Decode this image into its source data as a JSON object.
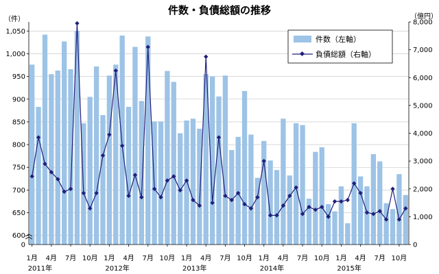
{
  "chart_data": {
    "type": "bar+line",
    "title": "件数・負債総額の推移",
    "left_axis": {
      "unit": "（件）",
      "ylim": [
        580,
        1070
      ],
      "ticks": [
        600,
        650,
        700,
        750,
        800,
        850,
        900,
        950,
        1000,
        1050
      ],
      "tick_labels": [
        "600",
        "650",
        "700",
        "750",
        "800",
        "850",
        "900",
        "950",
        "1,000",
        "1,050"
      ],
      "zero_label": "0"
    },
    "right_axis": {
      "unit": "（億円）",
      "ylim": [
        0,
        8000
      ],
      "ticks": [
        0,
        1000,
        2000,
        3000,
        4000,
        5000,
        6000,
        7000,
        8000
      ],
      "tick_labels": [
        "0",
        "1,000",
        "2,000",
        "3,000",
        "4,000",
        "5,000",
        "6,000",
        "7,000",
        "8,000"
      ]
    },
    "x_tick_labels": [
      {
        "index": 0,
        "label": "1月"
      },
      {
        "index": 3,
        "label": "4月"
      },
      {
        "index": 6,
        "label": "7月"
      },
      {
        "index": 9,
        "label": "10月"
      },
      {
        "index": 12,
        "label": "1月"
      },
      {
        "index": 15,
        "label": "4月"
      },
      {
        "index": 18,
        "label": "7月"
      },
      {
        "index": 21,
        "label": "10月"
      },
      {
        "index": 24,
        "label": "1月"
      },
      {
        "index": 27,
        "label": "4月"
      },
      {
        "index": 30,
        "label": "7月"
      },
      {
        "index": 33,
        "label": "10月"
      },
      {
        "index": 36,
        "label": "1月"
      },
      {
        "index": 39,
        "label": "4月"
      },
      {
        "index": 42,
        "label": "7月"
      },
      {
        "index": 45,
        "label": "10月"
      },
      {
        "index": 48,
        "label": "1月"
      },
      {
        "index": 51,
        "label": "4月"
      },
      {
        "index": 54,
        "label": "7月"
      },
      {
        "index": 57,
        "label": "10月"
      }
    ],
    "year_labels": [
      {
        "index": 0,
        "label": "2011年"
      },
      {
        "index": 12,
        "label": "2012年"
      },
      {
        "index": 24,
        "label": "2013年"
      },
      {
        "index": 36,
        "label": "2014年"
      },
      {
        "index": 48,
        "label": "2015年"
      }
    ],
    "series": [
      {
        "name": "件数（左軸）",
        "kind": "bar",
        "axis": "left",
        "color": "#9dc3e6",
        "values": [
          976,
          883,
          1042,
          955,
          963,
          1027,
          966,
          1050,
          847,
          905,
          972,
          865,
          952,
          976,
          1040,
          883,
          1015,
          896,
          1038,
          851,
          851,
          962,
          938,
          825,
          853,
          857,
          835,
          955,
          950,
          906,
          952,
          788,
          817,
          918,
          822,
          727,
          808,
          765,
          744,
          857,
          732,
          847,
          843,
          681,
          784,
          794,
          669,
          653,
          708,
          627,
          847,
          730,
          708,
          779,
          763,
          671,
          658,
          735,
          689
        ]
      },
      {
        "name": "負債総額（右軸）",
        "kind": "line",
        "axis": "right",
        "color": "#1f1f7a",
        "values": [
          2450,
          3850,
          2900,
          2600,
          2350,
          1900,
          2000,
          7950,
          1850,
          1300,
          1850,
          3200,
          3950,
          6250,
          3550,
          1750,
          2500,
          1700,
          7100,
          2000,
          1700,
          2300,
          2450,
          1950,
          2300,
          1600,
          1400,
          6750,
          1500,
          3850,
          1750,
          1600,
          1850,
          1450,
          1300,
          1700,
          3000,
          1050,
          1050,
          1400,
          1750,
          2050,
          1100,
          1350,
          1250,
          1350,
          1000,
          1550,
          1550,
          1600,
          2200,
          1850,
          1150,
          1100,
          1200,
          900,
          2000,
          900,
          1300
        ]
      }
    ]
  }
}
